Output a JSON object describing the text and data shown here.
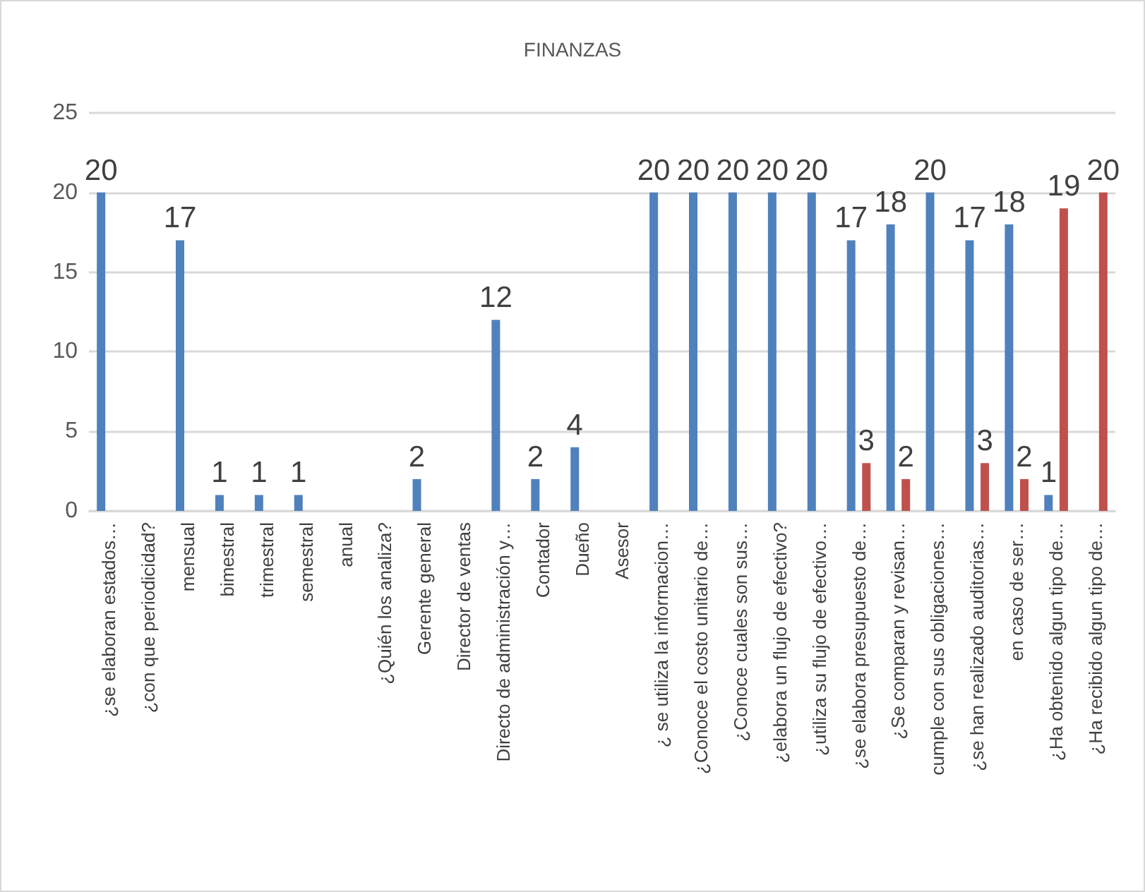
{
  "chart_data": {
    "type": "bar",
    "title": "FINANZAS",
    "categories": [
      "¿se elaboran estados…",
      "¿con que periodicidad?",
      "mensual",
      "bimestral",
      "trimestral",
      "semestral",
      "anual",
      "¿Quién los analiza?",
      "Gerente general",
      "Director de ventas",
      "Directo de administración y…",
      "Contador",
      "Dueño",
      "Asesor",
      "¿ se utiliza la informacion…",
      "¿Conoce el costo unitario de…",
      "¿Conoce cuales son sus…",
      "¿elabora un flujo de efectivo?",
      "¿utiliza su flujo de efectivo…",
      "¿se elabora presupuesto de…",
      "¿Se comparan y revisan…",
      "cumple con sus obligaciones…",
      "¿se han realizado auditorias…",
      "en caso de ser…",
      "¿Ha obtenido algun tipo de…",
      "¿Ha recibido algun tipo de…"
    ],
    "series": [
      {
        "color": "#4f81bd",
        "values": [
          20,
          null,
          17,
          1,
          1,
          1,
          null,
          null,
          2,
          null,
          12,
          2,
          4,
          null,
          20,
          20,
          20,
          20,
          20,
          17,
          18,
          20,
          17,
          18,
          1,
          null
        ]
      },
      {
        "color": "#c0504d",
        "values": [
          null,
          null,
          null,
          null,
          null,
          null,
          null,
          null,
          null,
          null,
          null,
          null,
          null,
          null,
          null,
          null,
          null,
          null,
          null,
          3,
          2,
          null,
          3,
          2,
          19,
          20
        ]
      }
    ],
    "ylim": [
      0,
      25
    ],
    "yticks": [
      0,
      5,
      10,
      15,
      20,
      25
    ],
    "grid": "y",
    "data_labels": true
  }
}
